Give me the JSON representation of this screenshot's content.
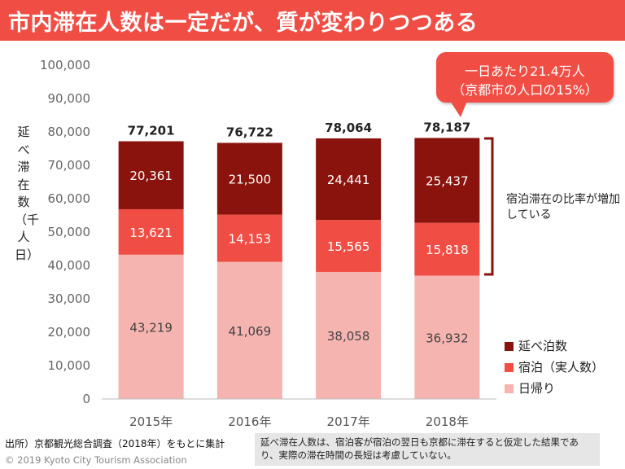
{
  "header": {
    "title": "市内滞在人数は一定だが、質が変わりつつある"
  },
  "chart_data": {
    "type": "bar",
    "stacked": true,
    "categories": [
      "2015年",
      "2016年",
      "2017年",
      "2018年"
    ],
    "series": [
      {
        "name": "日帰り",
        "values": [
          43219,
          41069,
          38058,
          36932
        ],
        "color": "#f5b4b0",
        "label_color": "#444444"
      },
      {
        "name": "宿泊（実人数）",
        "values": [
          13621,
          14153,
          15565,
          15818
        ],
        "color": "#f04e45",
        "label_color": "#ffffff"
      },
      {
        "name": "延べ泊数",
        "values": [
          20361,
          21500,
          24441,
          25437
        ],
        "color": "#8a140d",
        "label_color": "#ffffff"
      }
    ],
    "totals": [
      77201,
      76722,
      78064,
      78187
    ],
    "ylabel": "延べ滞在数（千人日）",
    "ylim": [
      0,
      100000
    ],
    "yticks": [
      0,
      10000,
      20000,
      30000,
      40000,
      50000,
      60000,
      70000,
      80000,
      90000,
      100000
    ],
    "grid": false,
    "legend_position": "right",
    "legend_order": [
      "延べ泊数",
      "宿泊（実人数）",
      "日帰り"
    ]
  },
  "callout": {
    "line1": "一日あたり21.4万人",
    "line2": "（京都市の人口の15%）"
  },
  "annotation": {
    "text": "宿泊滞在の比率が増加している"
  },
  "footer": {
    "source": "出所）京都観光総合調査（2018年）をもとに集計",
    "copyright": "© 2019 Kyoto City Tourism Association",
    "note": "延べ滞在人数は、宿泊客が宿泊の翌日も京都に滞在すると仮定した結果であり、実際の滞在時間の長短は考慮していない。"
  },
  "colors": {
    "accent": "#f04e45",
    "dark": "#8a140d",
    "light": "#f5b4b0"
  }
}
